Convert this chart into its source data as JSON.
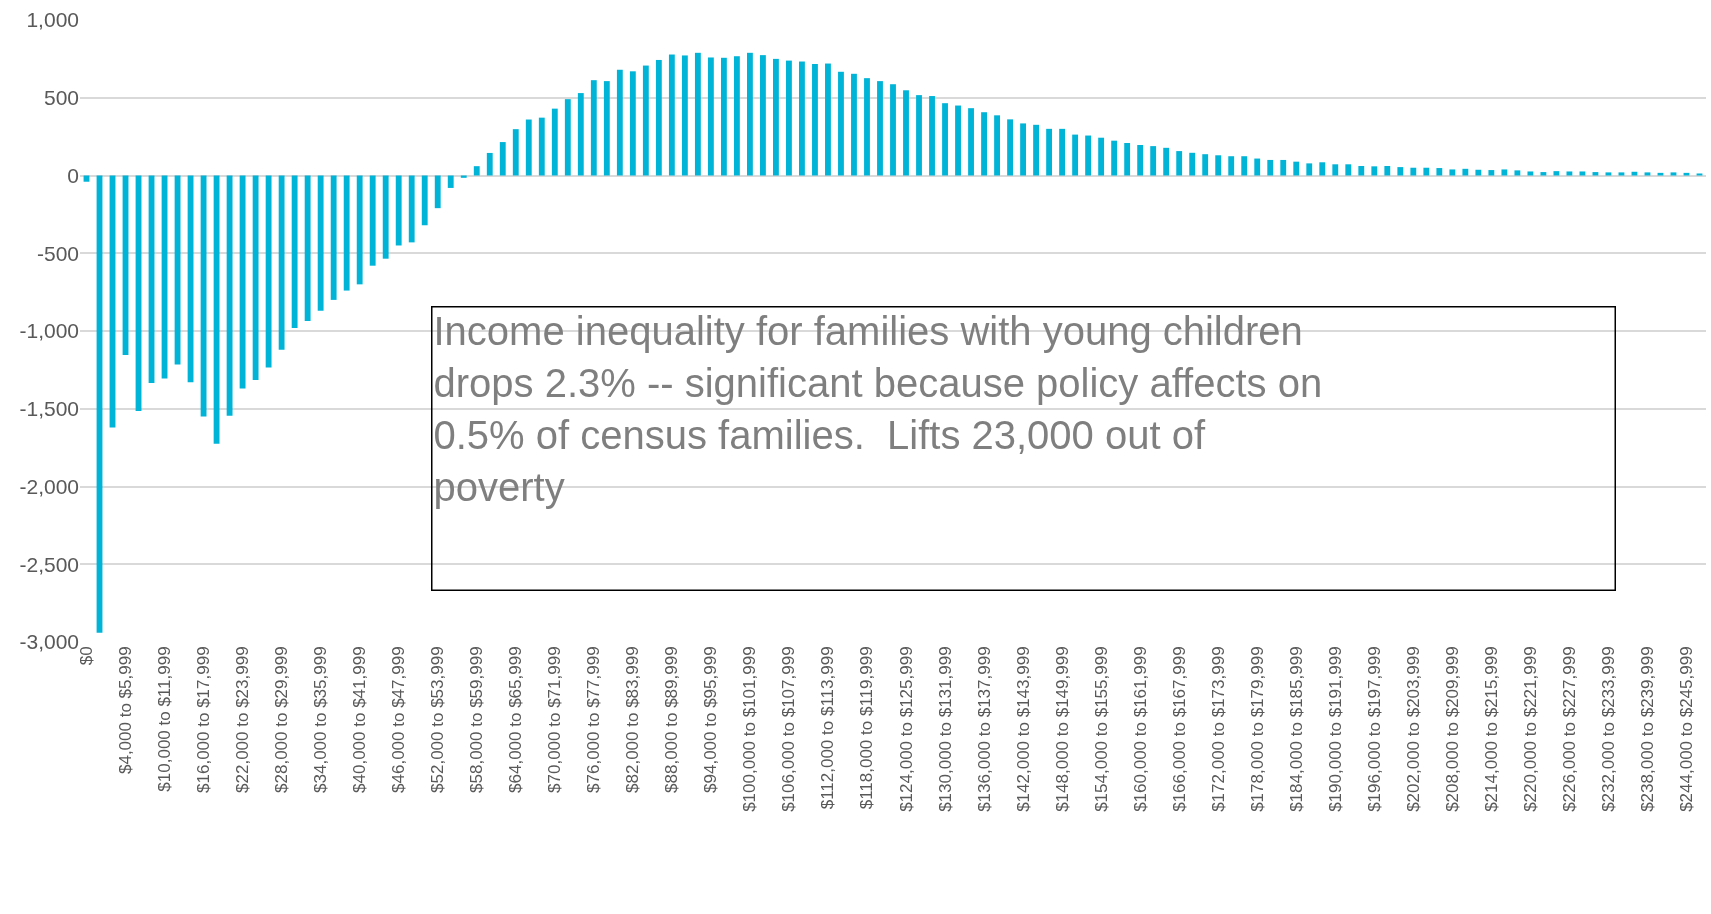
{
  "chart_data": {
    "type": "bar",
    "categories": [
      "$0",
      null,
      null,
      "$4,000 to $5,999",
      null,
      null,
      "$10,000 to $11,999",
      null,
      null,
      "$16,000 to $17,999",
      null,
      null,
      "$22,000 to $23,999",
      null,
      null,
      "$28,000 to $29,999",
      null,
      null,
      "$34,000 to $35,999",
      null,
      null,
      "$40,000 to $41,999",
      null,
      null,
      "$46,000 to $47,999",
      null,
      null,
      "$52,000 to $53,999",
      null,
      null,
      "$58,000 to $59,999",
      null,
      null,
      "$64,000 to $65,999",
      null,
      null,
      "$70,000 to $71,999",
      null,
      null,
      "$76,000 to $77,999",
      null,
      null,
      "$82,000 to $83,999",
      null,
      null,
      "$88,000 to $89,999",
      null,
      null,
      "$94,000 to $95,999",
      null,
      null,
      "$100,000 to $101,999",
      null,
      null,
      "$106,000 to $107,999",
      null,
      null,
      "$112,000 to $113,999",
      null,
      null,
      "$118,000 to $119,999",
      null,
      null,
      "$124,000 to $125,999",
      null,
      null,
      "$130,000 to $131,999",
      null,
      null,
      "$136,000 to $137,999",
      null,
      null,
      "$142,000 to $143,999",
      null,
      null,
      "$148,000 to $149,999",
      null,
      null,
      "$154,000 to $155,999",
      null,
      null,
      "$160,000 to $161,999",
      null,
      null,
      "$166,000 to $167,999",
      null,
      null,
      "$172,000 to $173,999",
      null,
      null,
      "$178,000 to $179,999",
      null,
      null,
      "$184,000 to $185,999",
      null,
      null,
      "$190,000 to $191,999",
      null,
      null,
      "$196,000 to $197,999",
      null,
      null,
      "$202,000 to $203,999",
      null,
      null,
      "$208,000 to $209,999",
      null,
      null,
      "$214,000 to $215,999",
      null,
      null,
      "$220,000 to $221,999",
      null,
      null,
      "$226,000 to $227,999",
      null,
      null,
      "$232,000 to $233,999",
      null,
      null,
      "$238,000 to $239,999",
      null,
      null,
      "$244,000 to $245,999",
      null
    ],
    "values": [
      -40,
      -2940,
      -1620,
      -1155,
      -1515,
      -1335,
      -1305,
      -1215,
      -1330,
      -1550,
      -1725,
      -1545,
      -1370,
      -1315,
      -1235,
      -1120,
      -980,
      -935,
      -870,
      -800,
      -740,
      -700,
      -580,
      -535,
      -450,
      -430,
      -320,
      -210,
      -80,
      -15,
      60,
      145,
      215,
      298,
      360,
      372,
      430,
      491,
      530,
      613,
      607,
      680,
      670,
      707,
      743,
      778,
      772,
      789,
      759,
      757,
      767,
      789,
      774,
      750,
      739,
      733,
      717,
      720,
      667,
      654,
      626,
      607,
      587,
      548,
      517,
      511,
      465,
      450,
      433,
      407,
      387,
      361,
      335,
      326,
      300,
      300,
      263,
      257,
      243,
      224,
      209,
      196,
      189,
      178,
      157,
      146,
      137,
      130,
      124,
      124,
      109,
      100,
      100,
      89,
      78,
      85,
      72,
      72,
      61,
      59,
      61,
      54,
      50,
      50,
      48,
      39,
      43,
      37,
      35,
      39,
      33,
      26,
      22,
      28,
      26,
      26,
      22,
      20,
      20,
      24,
      20,
      17,
      20,
      17,
      13
    ],
    "color": "#00b4d8",
    "ylim": [
      -3000,
      1000
    ],
    "yticks": [
      {
        "value": -3000,
        "label": "-3,000"
      },
      {
        "value": -2500,
        "label": "-2,500"
      },
      {
        "value": -2000,
        "label": "-2,000"
      },
      {
        "value": -1500,
        "label": "-1,500"
      },
      {
        "value": -1000,
        "label": "-1,000"
      },
      {
        "value": -500,
        "label": "-500"
      },
      0,
      500,
      {
        "value": 1000,
        "label": "1,000"
      }
    ],
    "grid": "y",
    "legend": false,
    "annotations": [
      "Income inequality for families with young children drops 2.3% -- significant because policy affects on 0.5% of census families.  Lifts 23,000 out of poverty"
    ]
  }
}
